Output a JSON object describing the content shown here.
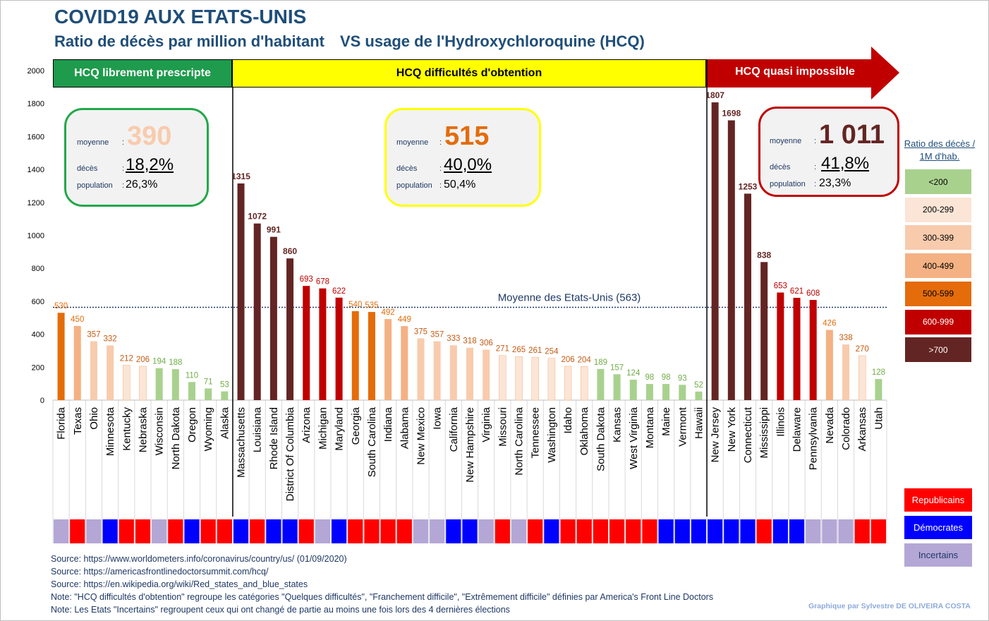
{
  "title": "COVID19 AUX ETATS-UNIS",
  "subtitle_left": "Ratio de décès par million d'habitant",
  "subtitle_right": "VS  usage de l'Hydroxychloroquine (HCQ)",
  "zones": [
    {
      "label": "HCQ librement prescripte",
      "moyenne_label": "moyenne",
      "moyenne_value": "390",
      "deces_label": "décès",
      "deces_pct": "18,2%",
      "population_label": "population",
      "population_pct": "26,3%",
      "color": "#1e9b4c",
      "value_color": "#f8cbad"
    },
    {
      "label": "HCQ difficultés d'obtention",
      "moyenne_label": "moyenne",
      "moyenne_value": "515",
      "deces_label": "décès",
      "deces_pct": "40,0%",
      "population_label": "population",
      "population_pct": "50,4%",
      "color": "#ffff00",
      "value_color": "#e46c0a"
    },
    {
      "label": "HCQ quasi impossible",
      "moyenne_label": "moyenne",
      "moyenne_value": "1 011",
      "deces_label": "décès",
      "deces_pct": "41,8%",
      "population_label": "population",
      "population_pct": "23,3%",
      "color": "#c00000",
      "value_color": "#632523"
    }
  ],
  "legend": {
    "title": "Ratio des décès / 1M d'hab.",
    "items": [
      {
        "label": "<200",
        "color": "#a9d18e"
      },
      {
        "label": "200-299",
        "color": "#fbe5d6"
      },
      {
        "label": "300-399",
        "color": "#f8cbad"
      },
      {
        "label": "400-499",
        "color": "#f4b183"
      },
      {
        "label": "500-599",
        "color": "#e46c0a"
      },
      {
        "label": "600-999",
        "color": "#c00000"
      },
      {
        "label": ">700",
        "color": "#632523"
      }
    ]
  },
  "party_legend": [
    {
      "label": "Republicains",
      "color": "#ff0000"
    },
    {
      "label": "Démocrates",
      "color": "#0000ff"
    },
    {
      "label": "Incertains",
      "color": "#b4a7d6"
    }
  ],
  "sources": [
    "Source: https://www.worldometers.info/coronavirus/country/us/ (01/09/2020)",
    "Source: https://americasfrontlinedoctorsummit.com/hcq/",
    "Source: https://en.wikipedia.org/wiki/Red_states_and_blue_states",
    "Note: \"HCQ difficultés d'obtention\" regroupe  les catégories \"Quelques difficultés\", \"Franchement difficile\", \"Extrêmement difficile\" définies par America's Front Line Doctors",
    "Note:  Les Etats  \"Incertains\"  regroupent ceux qui ont changé de partie au moins une fois lors des 4 dernières élections"
  ],
  "credit": "Graphique  par  Sylvestre DE OLIVEIRA  COSTA",
  "chart_data": {
    "type": "bar",
    "ylim": [
      0,
      2000
    ],
    "y_ticks": [
      0,
      200,
      400,
      600,
      800,
      1000,
      1200,
      1400,
      1600,
      1800,
      2000
    ],
    "average_line": {
      "value": 563,
      "label": "Moyenne des Etats-Unis (563)"
    },
    "categories": [
      "Florida",
      "Texas",
      "Ohio",
      "Minnesota",
      "Kentucky",
      "Nebraska",
      "Wisconsin",
      "North Dakota",
      "Oregon",
      "Wyoming",
      "Alaska",
      "Massachusetts",
      "Louisiana",
      "Rhode Island",
      "District Of Columbia",
      "Arizona",
      "Michigan",
      "Maryland",
      "Georgia",
      "South Carolina",
      "Indiana",
      "Alabama",
      "New Mexico",
      "Iowa",
      "California",
      "New Hampshire",
      "Virginia",
      "Missouri",
      "North Carolina",
      "Tennessee",
      "Washington",
      "Idaho",
      "Oklahoma",
      "South Dakota",
      "Kansas",
      "West Virginia",
      "Montana",
      "Maine",
      "Vermont",
      "Hawaii",
      "New Jersey",
      "New York",
      "Connecticut",
      "Mississippi",
      "Illinois",
      "Delaware",
      "Pennsylvania",
      "Nevada",
      "Colorado",
      "Arkansas",
      "Utah"
    ],
    "values": [
      530,
      450,
      357,
      332,
      212,
      206,
      194,
      188,
      110,
      71,
      53,
      1315,
      1072,
      991,
      860,
      693,
      678,
      622,
      540,
      535,
      492,
      449,
      375,
      357,
      333,
      318,
      306,
      271,
      265,
      261,
      254,
      206,
      204,
      189,
      157,
      124,
      98,
      98,
      93,
      52,
      1807,
      1698,
      1253,
      838,
      653,
      621,
      608,
      426,
      338,
      270,
      128
    ],
    "party": [
      "I",
      "R",
      "I",
      "D",
      "R",
      "R",
      "I",
      "R",
      "D",
      "R",
      "R",
      "D",
      "R",
      "D",
      "D",
      "R",
      "I",
      "D",
      "R",
      "R",
      "R",
      "R",
      "I",
      "I",
      "D",
      "D",
      "I",
      "R",
      "I",
      "R",
      "D",
      "R",
      "R",
      "R",
      "R",
      "R",
      "R",
      "D",
      "D",
      "D",
      "D",
      "D",
      "D",
      "R",
      "D",
      "D",
      "I",
      "I",
      "I",
      "R",
      "R"
    ],
    "zone": [
      0,
      0,
      0,
      0,
      0,
      0,
      0,
      0,
      0,
      0,
      0,
      1,
      1,
      1,
      1,
      1,
      1,
      1,
      1,
      1,
      1,
      1,
      1,
      1,
      1,
      1,
      1,
      1,
      1,
      1,
      1,
      1,
      1,
      1,
      1,
      1,
      1,
      1,
      1,
      1,
      2,
      2,
      2,
      2,
      2,
      2,
      2,
      2,
      2,
      2,
      2
    ]
  }
}
